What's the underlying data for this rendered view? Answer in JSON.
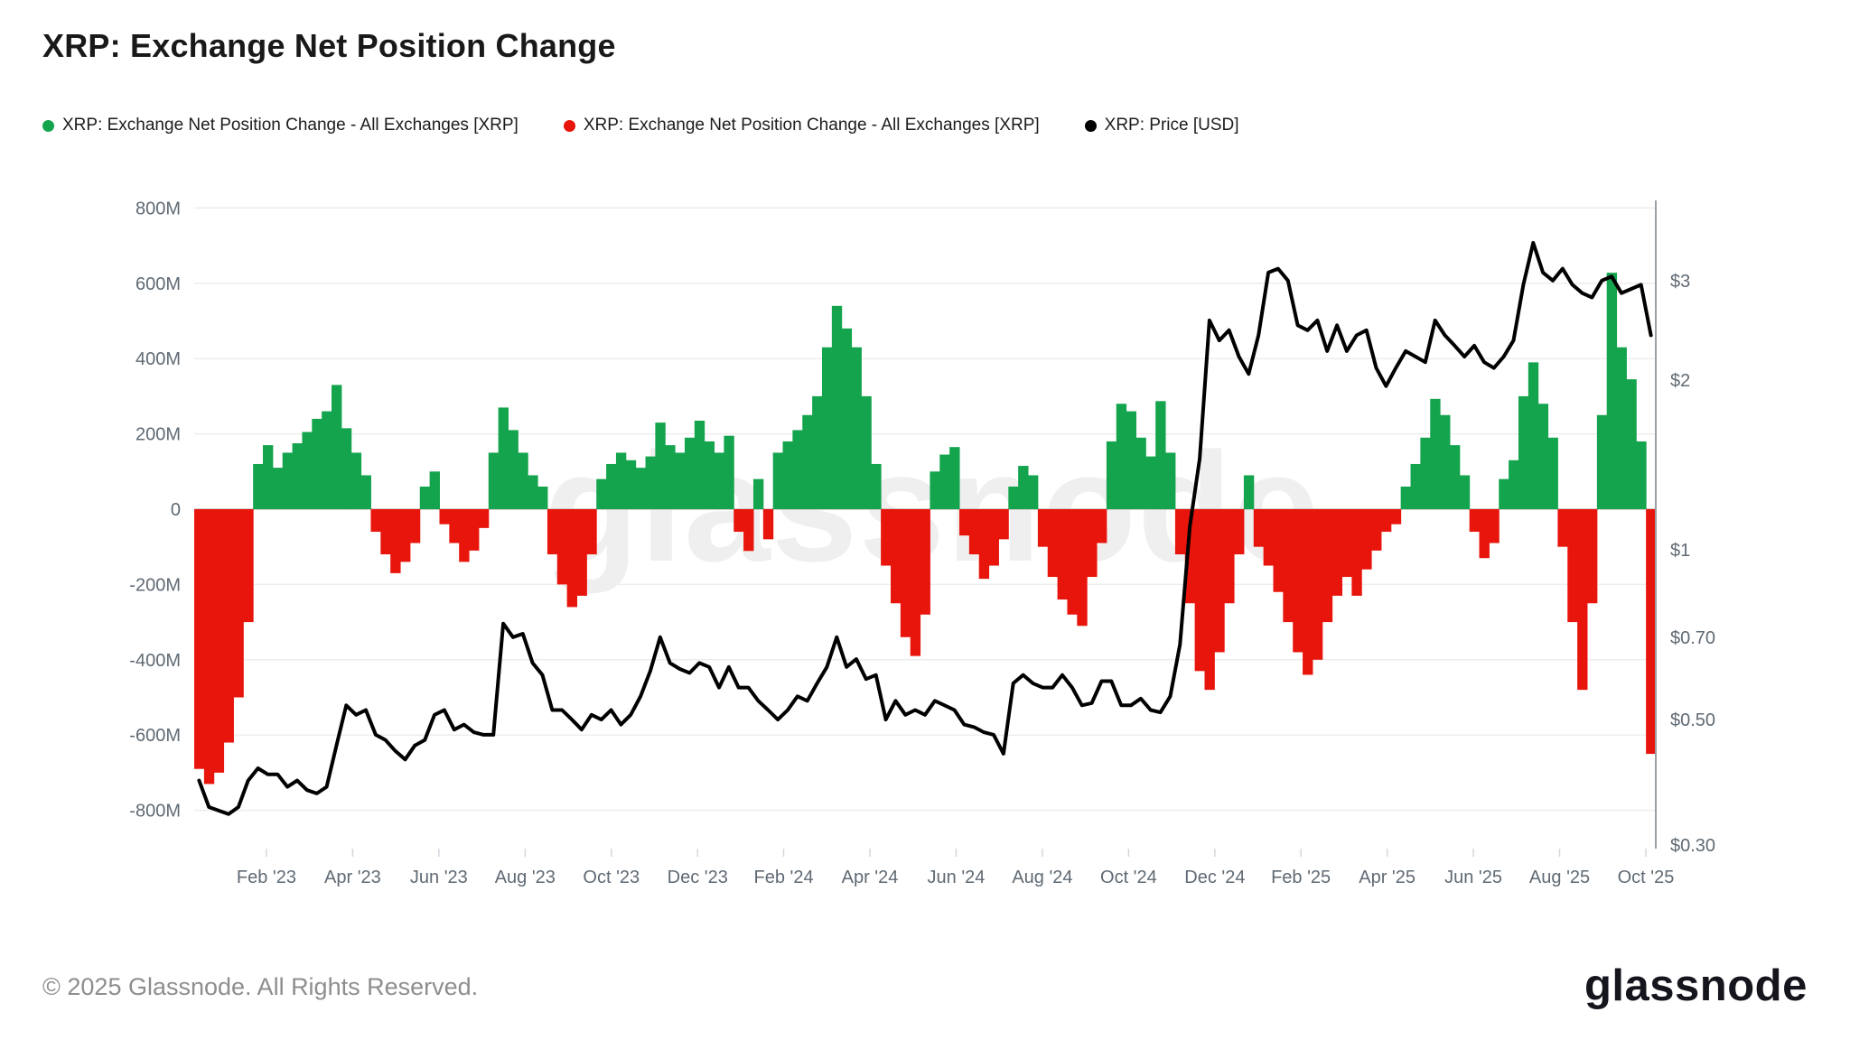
{
  "page": {
    "title": "XRP: Exchange Net Position Change"
  },
  "legend": [
    {
      "label": "XRP: Exchange Net Position Change - All Exchanges [XRP]",
      "color": "#14a44d"
    },
    {
      "label": "XRP: Exchange Net Position Change - All Exchanges [XRP]",
      "color": "#e8150c"
    },
    {
      "label": "XRP: Price [USD]",
      "color": "#000000"
    }
  ],
  "watermark": "glassnode",
  "footer": {
    "copyright": "© 2025 Glassnode. All Rights Reserved.",
    "logo": "glassnode"
  },
  "chart_data": {
    "type": "bar+line",
    "title": "XRP: Exchange Net Position Change",
    "x_range": [
      "2022-12-13",
      "2025-10-10"
    ],
    "x_ticks": {
      "labels": [
        "Feb '23",
        "Apr '23",
        "Jun '23",
        "Aug '23",
        "Oct '23",
        "Dec '23",
        "Feb '24",
        "Apr '24",
        "Jun '24",
        "Aug '24",
        "Oct '24",
        "Dec '24",
        "Feb '25",
        "Apr '25",
        "Jun '25",
        "Aug '25",
        "Oct '25"
      ],
      "t": [
        0.0494,
        0.1084,
        0.1674,
        0.2264,
        0.2854,
        0.3444,
        0.4033,
        0.4623,
        0.5213,
        0.5803,
        0.6393,
        0.6983,
        0.7572,
        0.8162,
        0.8752,
        0.9342,
        0.9932
      ]
    },
    "left_axis": {
      "unit": "XRP",
      "tick_labels": [
        "800M",
        "600M",
        "400M",
        "200M",
        "0",
        "-200M",
        "-400M",
        "-600M",
        "-800M"
      ],
      "tick_values": [
        800,
        600,
        400,
        200,
        0,
        -200,
        -400,
        -600,
        -800
      ],
      "range": [
        -800,
        800
      ],
      "grid": true
    },
    "right_axis": {
      "unit": "USD",
      "scale": "log",
      "tick_labels": [
        "$3",
        "$2",
        "$1",
        "$0.70",
        "$0.50",
        "$0.30"
      ],
      "tick_values": [
        3,
        2,
        1,
        0.7,
        0.5,
        0.3
      ]
    },
    "series": [
      {
        "name": "XRP: Exchange Net Position Change - All Exchanges [XRP]",
        "type": "bar",
        "unit": "M XRP",
        "color_positive": "#14a44d",
        "color_negative": "#e8150c",
        "values": [
          -690,
          -730,
          -700,
          -620,
          -500,
          -300,
          120,
          170,
          110,
          150,
          175,
          205,
          240,
          260,
          330,
          215,
          150,
          90,
          -60,
          -120,
          -170,
          -140,
          -90,
          60,
          100,
          -40,
          -90,
          -140,
          -110,
          -50,
          150,
          270,
          210,
          150,
          90,
          60,
          -120,
          -200,
          -260,
          -230,
          -120,
          80,
          120,
          150,
          130,
          110,
          140,
          230,
          170,
          150,
          190,
          235,
          180,
          150,
          195,
          -60,
          -111,
          80,
          -80,
          150,
          180,
          210,
          250,
          300,
          430,
          540,
          480,
          430,
          300,
          120,
          -150,
          -250,
          -340,
          -390,
          -280,
          100,
          145,
          165,
          -70,
          -120,
          -185,
          -150,
          -80,
          60,
          115,
          90,
          -100,
          -180,
          -240,
          -280,
          -310,
          -180,
          -90,
          180,
          280,
          260,
          190,
          140,
          287,
          150,
          -120,
          -250,
          -430,
          -480,
          -380,
          -250,
          -120,
          90,
          -100,
          -150,
          -220,
          -300,
          -380,
          -440,
          -400,
          -300,
          -230,
          -180,
          -230,
          -160,
          -110,
          -60,
          -40,
          60,
          120,
          190,
          293,
          250,
          170,
          90,
          -60,
          -130,
          -90,
          80,
          130,
          300,
          390,
          280,
          190,
          -100,
          -300,
          -480,
          -250,
          250,
          628,
          430,
          345,
          180,
          -650
        ]
      },
      {
        "name": "XRP: Price [USD]",
        "type": "line",
        "unit": "USD",
        "color": "#000000",
        "values": [
          0.39,
          0.35,
          0.345,
          0.34,
          0.35,
          0.39,
          0.41,
          0.4,
          0.4,
          0.38,
          0.39,
          0.375,
          0.37,
          0.38,
          0.45,
          0.53,
          0.51,
          0.52,
          0.47,
          0.46,
          0.44,
          0.425,
          0.45,
          0.46,
          0.51,
          0.52,
          0.48,
          0.49,
          0.475,
          0.47,
          0.47,
          0.74,
          0.7,
          0.71,
          0.63,
          0.6,
          0.52,
          0.52,
          0.5,
          0.48,
          0.51,
          0.5,
          0.52,
          0.49,
          0.51,
          0.55,
          0.61,
          0.7,
          0.63,
          0.615,
          0.605,
          0.63,
          0.62,
          0.57,
          0.62,
          0.57,
          0.57,
          0.54,
          0.52,
          0.5,
          0.52,
          0.55,
          0.54,
          0.58,
          0.62,
          0.7,
          0.62,
          0.64,
          0.59,
          0.6,
          0.5,
          0.54,
          0.51,
          0.52,
          0.51,
          0.54,
          0.53,
          0.52,
          0.49,
          0.485,
          0.475,
          0.47,
          0.435,
          0.58,
          0.6,
          0.58,
          0.57,
          0.57,
          0.6,
          0.57,
          0.53,
          0.535,
          0.585,
          0.585,
          0.53,
          0.53,
          0.545,
          0.52,
          0.515,
          0.55,
          0.68,
          1.1,
          1.45,
          2.55,
          2.35,
          2.45,
          2.2,
          2.05,
          2.4,
          3.1,
          3.15,
          3.0,
          2.5,
          2.45,
          2.55,
          2.25,
          2.5,
          2.25,
          2.4,
          2.45,
          2.1,
          1.95,
          2.1,
          2.25,
          2.2,
          2.15,
          2.55,
          2.4,
          2.3,
          2.2,
          2.3,
          2.15,
          2.1,
          2.2,
          2.35,
          2.95,
          3.5,
          3.1,
          3.0,
          3.15,
          2.95,
          2.85,
          2.8,
          3.0,
          3.05,
          2.85,
          2.9,
          2.95,
          2.4
        ]
      }
    ]
  }
}
